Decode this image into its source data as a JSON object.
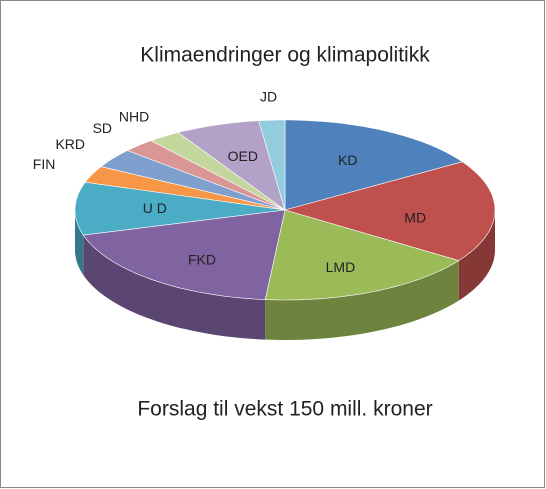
{
  "chart_data": {
    "type": "pie3d",
    "title": "Klimaendringer og klimapolitikk",
    "note": "Forslag til vekst 150 mill. kroner",
    "categories": [
      "KD",
      "MD",
      "LMD",
      "FKD",
      "U D",
      "FIN",
      "KRD",
      "SD",
      "NHD",
      "OED",
      "JD"
    ],
    "values": [
      16,
      18.5,
      17,
      19,
      9.5,
      3,
      3.5,
      2.5,
      2.5,
      6.5,
      2
    ],
    "colors": [
      "#4f81bd",
      "#c0504d",
      "#9bbb59",
      "#8064a2",
      "#4bacc6",
      "#f79646",
      "#7f9fcf",
      "#d99694",
      "#c3d69b",
      "#b3a2c7",
      "#93cddd"
    ]
  }
}
